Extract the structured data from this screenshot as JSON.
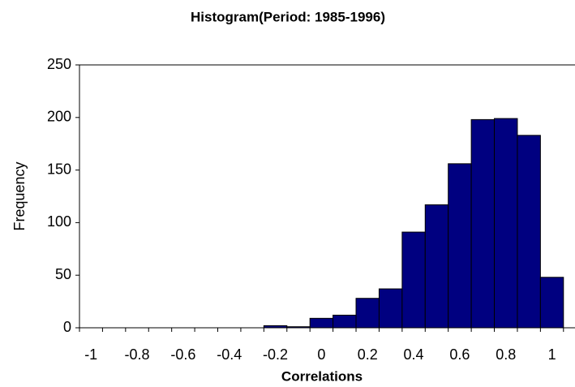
{
  "chart_data": {
    "type": "histogram",
    "title": "Histogram(Period: 1985-1996)",
    "x_label": "Correlations",
    "y_label": "Frequency",
    "bins": [
      -1.05,
      -0.95,
      -0.85,
      -0.75,
      -0.65,
      -0.55,
      -0.45,
      -0.35,
      -0.25,
      -0.15,
      -0.05,
      0.05,
      0.15,
      0.25,
      0.35,
      0.45,
      0.55,
      0.65,
      0.75,
      0.85,
      0.95,
      1.05
    ],
    "values": [
      0,
      0,
      0,
      0,
      0,
      0,
      0,
      0,
      2,
      1,
      9,
      12,
      28,
      37,
      91,
      117,
      156,
      198,
      199,
      183,
      48
    ],
    "color": "#000080",
    "xlim": [
      -1.05,
      1.1
    ],
    "ylim": [
      0,
      250
    ],
    "xticks": [
      -1,
      -0.8,
      -0.6,
      -0.4,
      -0.2,
      0,
      0.2,
      0.4,
      0.6,
      0.8,
      1
    ],
    "yticks": [
      0,
      50,
      100,
      150,
      200,
      250
    ]
  }
}
